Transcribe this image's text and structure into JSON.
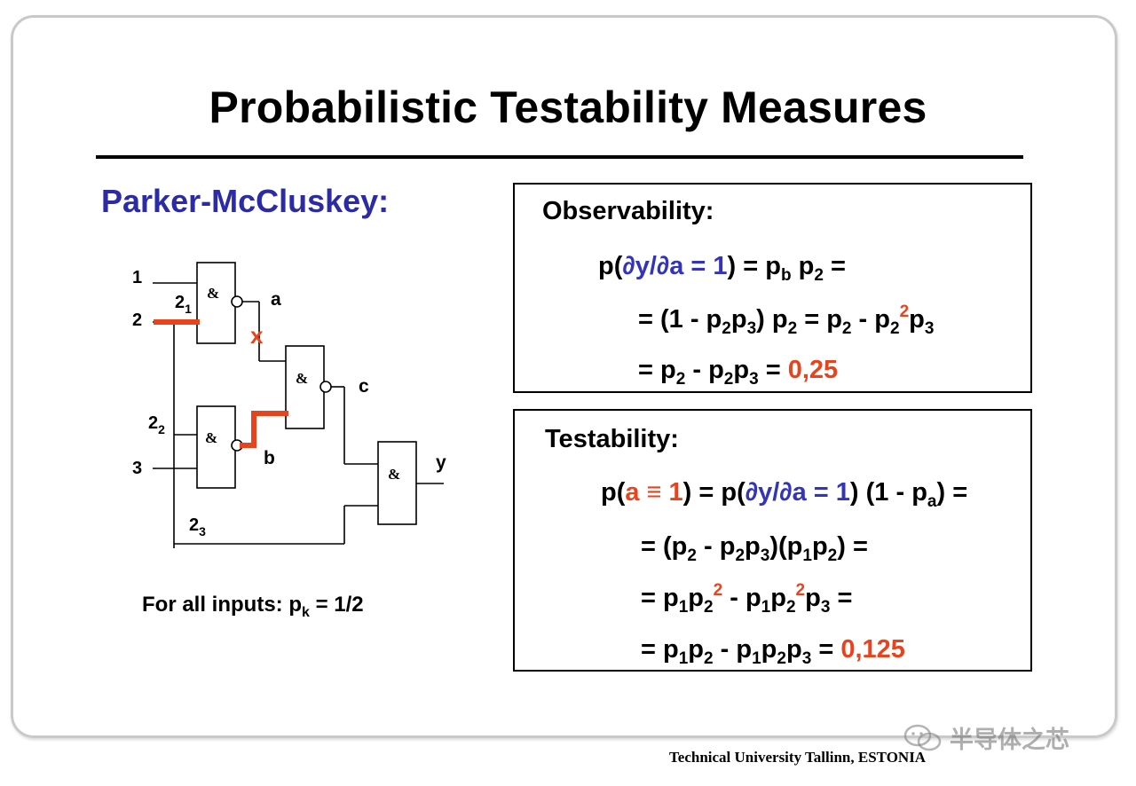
{
  "slide": {
    "title": "Probabilistic Testability Measures",
    "subtitle": "Parker-McCluskey:",
    "footer": "Technical University Tallinn, ESTONIA",
    "watermark": "半导体之芯"
  },
  "circuit": {
    "input_labels": [
      "1",
      "2",
      "3"
    ],
    "branch_labels": {
      "b1_main": "2",
      "b1_sub": "1",
      "b2_main": "2",
      "b2_sub": "2",
      "b3_main": "2",
      "b3_sub": "3"
    },
    "signal_labels": [
      "a",
      "b",
      "c",
      "y"
    ],
    "gate_symbol": "&",
    "fault_mark": "x",
    "note_prefix": "For all inputs:  p",
    "note_sub": "k",
    "note_suffix": " = 1/2"
  },
  "observability": {
    "title": "Observability:",
    "line1": {
      "a": "p(",
      "b": "∂y/∂a = 1",
      "c": ") = p",
      "d": "b",
      "e": " p",
      "f": "2",
      "g": " ="
    },
    "line2": {
      "a": "= (1 - p",
      "b": "2",
      "c": "p",
      "d": "3",
      "e": ") p",
      "f": "2",
      "g": " = p",
      "h": "2",
      "i": " -  p",
      "j": "2",
      "k": "2",
      "l": "p",
      "m": "3"
    },
    "line3": {
      "a": "= p",
      "b": "2",
      "c": " -  p",
      "d": "2",
      "e": "p",
      "f": "3",
      "g": " = ",
      "result": "0,25"
    }
  },
  "testability": {
    "title": "Testability:",
    "line1": {
      "a": "p(",
      "b": "a ≡ 1",
      "c": ") = p(",
      "d": "∂y/∂a = 1",
      "e": ") (1 - p",
      "f": "a",
      "g": ") ="
    },
    "line2": {
      "a": "= (p",
      "b": "2",
      "c": " -  p",
      "d": "2",
      "e": "p",
      "f": "3",
      "g": ")(p",
      "h": "1",
      "i": "p",
      "j": "2",
      "k": ") ="
    },
    "line3": {
      "a": "= p",
      "b": "1",
      "c": "p",
      "d": "2",
      "e": "2",
      "f": " -  p",
      "g": "1",
      "h": "p",
      "i": "2",
      "j": "2",
      "k": "p",
      "l": "3",
      "m": " ="
    },
    "line4": {
      "a": "= p",
      "b": "1",
      "c": "p",
      "d": "2",
      "e": " -  p",
      "f": "1",
      "g": "p",
      "h": "2",
      "i": "p",
      "j": "3",
      "k": " = ",
      "result": "0,125"
    }
  },
  "colors": {
    "accent_blue": "#2b2ba6",
    "highlight_red": "#e8431c"
  }
}
